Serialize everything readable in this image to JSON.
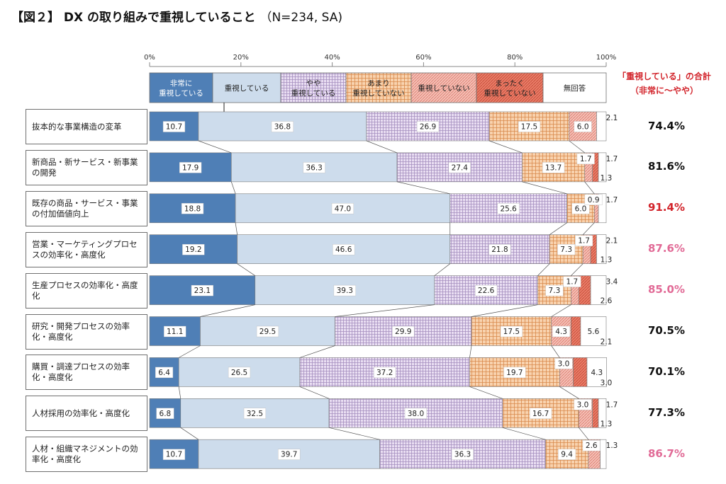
{
  "title": {
    "main": "【図２】 DX の取り組みで重視していること",
    "sub": "（N=234, SA)"
  },
  "total_header": {
    "line1": "「重視している」の合計",
    "line2": "（非常に～やや）"
  },
  "colors": {
    "very": "#4f7fb6",
    "important": "#cddcec",
    "somewhat": "#e3d6ee",
    "not_much": "#f7cda7",
    "not": "#f3b7ad",
    "not_at_all": "#e46d5a",
    "no_answer": "#ffffff",
    "total_red": "#d2232a",
    "total_pink": "#e16a96",
    "total_black": "#111111"
  },
  "chart_data": {
    "type": "bar",
    "orientation": "horizontal",
    "stacked": true,
    "xlim": [
      0,
      100
    ],
    "x_ticks": [
      "0%",
      "20%",
      "40%",
      "60%",
      "80%",
      "100%"
    ],
    "legend_placement": "top",
    "series": [
      {
        "key": "very",
        "name": "非常に\n重視している"
      },
      {
        "key": "important",
        "name": "重視している"
      },
      {
        "key": "somewhat",
        "name": "やや\n重視している"
      },
      {
        "key": "not_much",
        "name": "あまり\n重視していない"
      },
      {
        "key": "not",
        "name": "重視していない"
      },
      {
        "key": "not_at_all",
        "name": "まったく\n重視していない"
      },
      {
        "key": "no_answer",
        "name": "無回答"
      }
    ],
    "categories": [
      {
        "label": "抜本的な事業構造の変革",
        "values": [
          10.7,
          36.8,
          26.9,
          17.5,
          6.0,
          0.0,
          2.1
        ],
        "labels": [
          "10.7",
          "36.8",
          "26.9",
          "17.5",
          "6.0",
          "",
          "2.1"
        ],
        "total": "74.4%",
        "total_color": "total_black"
      },
      {
        "label": "新商品・新サービス・新事業の開発",
        "values": [
          17.9,
          36.3,
          27.4,
          13.7,
          1.7,
          1.3,
          1.7
        ],
        "labels": [
          "17.9",
          "36.3",
          "27.4",
          "13.7",
          "1.7",
          "1.3",
          "1.7"
        ],
        "total": "81.6%",
        "total_color": "total_black"
      },
      {
        "label": "既存の商品・サービス・事業の付加価値向上",
        "values": [
          18.8,
          47.0,
          25.6,
          6.0,
          0.9,
          0.0,
          1.7
        ],
        "labels": [
          "18.8",
          "47.0",
          "25.6",
          "6.0",
          "0.9",
          "",
          "1.7"
        ],
        "total": "91.4%",
        "total_color": "total_red"
      },
      {
        "label": "営業・マーケティングプロセスの効率化・高度化",
        "values": [
          19.2,
          46.6,
          21.8,
          7.3,
          1.7,
          1.3,
          2.1
        ],
        "labels": [
          "19.2",
          "46.6",
          "21.8",
          "7.3",
          "1.7",
          "1.3",
          "2.1"
        ],
        "total": "87.6%",
        "total_color": "total_pink"
      },
      {
        "label": "生産プロセスの効率化・高度化",
        "values": [
          23.1,
          39.3,
          22.6,
          7.3,
          1.7,
          2.6,
          3.4
        ],
        "labels": [
          "23.1",
          "39.3",
          "22.6",
          "7.3",
          "1.7",
          "2.6",
          "3.4"
        ],
        "total": "85.0%",
        "total_color": "total_pink"
      },
      {
        "label": "研究・開発プロセスの効率化・高度化",
        "values": [
          11.1,
          29.5,
          29.9,
          17.5,
          4.3,
          2.1,
          5.6
        ],
        "labels": [
          "11.1",
          "29.5",
          "29.9",
          "17.5",
          "4.3",
          "2.1",
          "5.6"
        ],
        "total": "70.5%",
        "total_color": "total_black"
      },
      {
        "label": "購買・調達プロセスの効率化・高度化",
        "values": [
          6.4,
          26.5,
          37.2,
          19.7,
          3.0,
          3.0,
          4.3
        ],
        "labels": [
          "6.4",
          "26.5",
          "37.2",
          "19.7",
          "3.0",
          "3.0",
          "4.3"
        ],
        "total": "70.1%",
        "total_color": "total_black"
      },
      {
        "label": "人材採用の効率化・高度化",
        "values": [
          6.8,
          32.5,
          38.0,
          16.7,
          3.0,
          1.3,
          1.7
        ],
        "labels": [
          "6.8",
          "32.5",
          "38.0",
          "16.7",
          "3.0",
          "1.3",
          "1.7"
        ],
        "total": "77.3%",
        "total_color": "total_black"
      },
      {
        "label": "人材・組織マネジメントの効率化・高度化",
        "values": [
          10.7,
          39.7,
          36.3,
          9.4,
          2.6,
          0.0,
          1.3
        ],
        "labels": [
          "10.7",
          "39.7",
          "36.3",
          "9.4",
          "2.6",
          "",
          "1.3"
        ],
        "total": "86.7%",
        "total_color": "total_pink"
      }
    ]
  }
}
